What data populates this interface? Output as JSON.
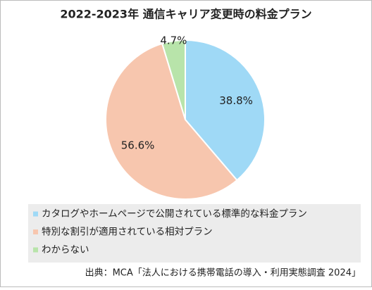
{
  "chart_data": {
    "type": "pie",
    "title": "2022-2023年 通信キャリア変更時の料金プラン",
    "categories": [
      "カタログやホームページで公開されている標準的な料金プラン",
      "特別な割引が適用されている相対プラン",
      "わからない"
    ],
    "values": [
      38.8,
      56.6,
      4.7
    ],
    "value_labels": [
      "38.8%",
      "56.6%",
      "4.7%"
    ],
    "colors": [
      "#9fd9f6",
      "#f7c6ae",
      "#b8e4aa"
    ],
    "source": "出典：MCA「法人における携帯電話の導入・利用実態調査 2024」"
  }
}
